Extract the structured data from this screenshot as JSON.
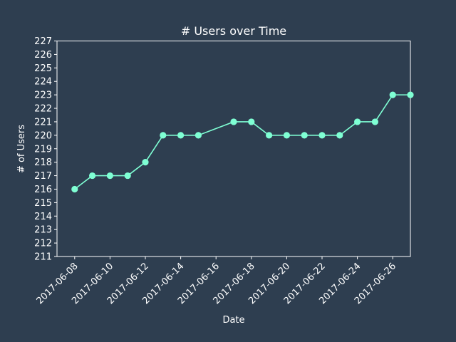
{
  "colors": {
    "background": "#2e3e50",
    "axes": "#ffffff",
    "series_line": "#7fffd4"
  },
  "chart_data": {
    "type": "line",
    "title": "# Users over Time",
    "xlabel": "Date",
    "ylabel": "# of Users",
    "x_tick_labels": [
      "2017-06-08",
      "2017-06-10",
      "2017-06-12",
      "2017-06-14",
      "2017-06-16",
      "2017-06-18",
      "2017-06-20",
      "2017-06-22",
      "2017-06-24",
      "2017-06-26"
    ],
    "y_tick_labels": [
      "211",
      "212",
      "213",
      "214",
      "215",
      "216",
      "217",
      "218",
      "219",
      "220",
      "221",
      "222",
      "223",
      "224",
      "225",
      "226",
      "227"
    ],
    "ylim": [
      211,
      227
    ],
    "xlim": [
      "2017-06-07",
      "2017-06-27"
    ],
    "grid": false,
    "legend": "none",
    "x": [
      "2017-06-08",
      "2017-06-09",
      "2017-06-10",
      "2017-06-11",
      "2017-06-12",
      "2017-06-13",
      "2017-06-14",
      "2017-06-15",
      "2017-06-17",
      "2017-06-18",
      "2017-06-19",
      "2017-06-20",
      "2017-06-21",
      "2017-06-22",
      "2017-06-23",
      "2017-06-24",
      "2017-06-25",
      "2017-06-26",
      "2017-06-27"
    ],
    "values": [
      216,
      217,
      217,
      217,
      218,
      220,
      220,
      220,
      221,
      221,
      220,
      220,
      220,
      220,
      220,
      221,
      221,
      223,
      223
    ]
  }
}
